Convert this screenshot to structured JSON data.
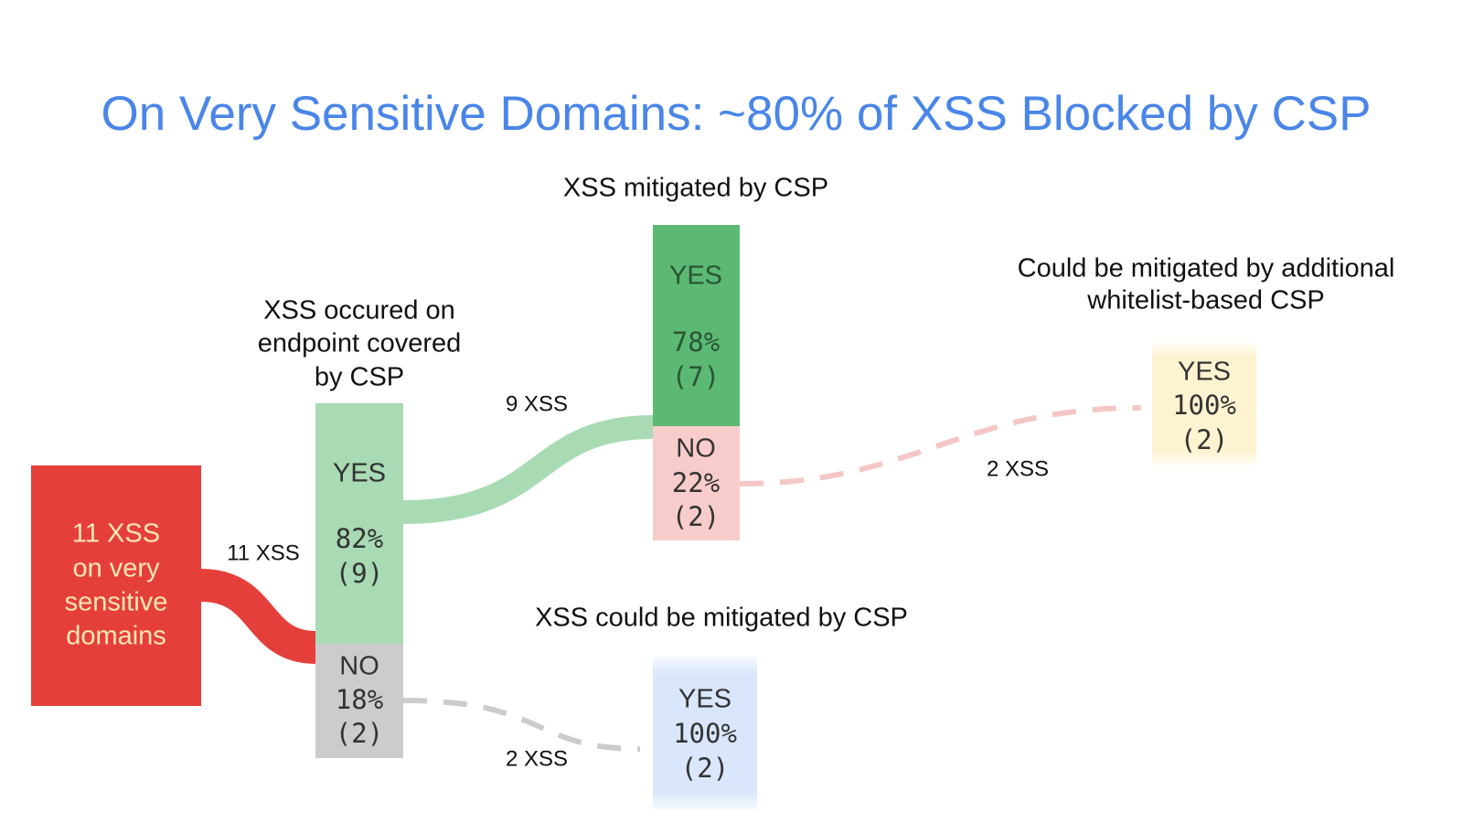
{
  "title": "On Very Sensitive Domains: ~80% of XSS Blocked by CSP",
  "stages": [
    {
      "lines": [
        "XSS occured on",
        "endpoint covered",
        "by CSP"
      ]
    },
    {
      "lines": [
        "XSS mitigated by CSP"
      ]
    },
    {
      "lines": [
        "Could be mitigated by additional",
        "whitelist-based CSP"
      ]
    },
    {
      "lines": [
        "XSS could be mitigated by CSP"
      ]
    }
  ],
  "nodes": [
    {
      "lines": [
        "11 XSS",
        "on very",
        "sensitive",
        "domains"
      ]
    },
    {
      "lines": [
        "YES",
        "82%",
        "(9)"
      ]
    },
    {
      "lines": [
        "NO",
        "18%",
        "(2)"
      ]
    },
    {
      "lines": [
        "YES",
        "78%",
        "(7)"
      ]
    },
    {
      "lines": [
        "NO",
        "22%",
        "(2)"
      ]
    },
    {
      "lines": [
        "YES",
        "100%",
        "(2)"
      ]
    },
    {
      "lines": [
        "YES",
        "100%",
        "(2)"
      ]
    }
  ],
  "flows": [
    {
      "label": "11 XSS"
    },
    {
      "label": "9 XSS"
    },
    {
      "label": "2 XSS"
    },
    {
      "label": "2 XSS"
    }
  ]
}
